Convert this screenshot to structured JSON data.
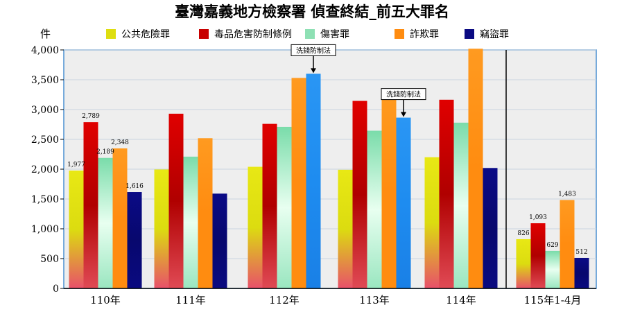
{
  "chart_data": {
    "type": "bar",
    "title": "臺灣嘉義地方檢察署 偵查終結_前五大罪名",
    "ylabel": "件",
    "ylim": [
      0,
      4000
    ],
    "yticks": [
      0,
      500,
      1000,
      1500,
      2000,
      2500,
      3000,
      3500,
      4000
    ],
    "ytick_labels": [
      "0",
      "500",
      "1,000",
      "1,500",
      "2,000",
      "2,500",
      "3,000",
      "3,500",
      "4,000"
    ],
    "categories": [
      "110年",
      "111年",
      "112年",
      "113年",
      "114年",
      "115年1-4月"
    ],
    "series": [
      {
        "name": "公共危險罪",
        "color": "#dede10",
        "values": [
          1977,
          1995,
          2040,
          1990,
          2200,
          826
        ]
      },
      {
        "name": "毒品危害防制條例",
        "color": "#c80000",
        "values": [
          2789,
          2930,
          2760,
          3145,
          3165,
          1093
        ]
      },
      {
        "name": "傷害罪",
        "color": "#8ee0b4",
        "values": [
          2189,
          2210,
          2710,
          2645,
          2780,
          629
        ]
      },
      {
        "name": "詐欺罪",
        "color": "#ff8c10",
        "values": [
          2348,
          2520,
          3530,
          3260,
          4020,
          1483
        ]
      },
      {
        "name": "竊盜罪",
        "color": "#0a0a82",
        "values": [
          1616,
          1590,
          3600,
          2865,
          2020,
          512
        ]
      }
    ],
    "data_labels": [
      {
        "category": 0,
        "series": 0,
        "text": "1,977"
      },
      {
        "category": 0,
        "series": 1,
        "text": "2,789"
      },
      {
        "category": 0,
        "series": 2,
        "text": "2,189"
      },
      {
        "category": 0,
        "series": 3,
        "text": "2,348"
      },
      {
        "category": 0,
        "series": 4,
        "text": "1,616"
      },
      {
        "category": 5,
        "series": 0,
        "text": "826"
      },
      {
        "category": 5,
        "series": 1,
        "text": "1,093"
      },
      {
        "category": 5,
        "series": 2,
        "text": "629"
      },
      {
        "category": 5,
        "series": 3,
        "text": "1,483"
      },
      {
        "category": 5,
        "series": 4,
        "text": "512"
      }
    ],
    "annotations": [
      {
        "category": 2,
        "series": 4,
        "text": "洗錢防制法",
        "highlight_color": "#1e8cf0"
      },
      {
        "category": 3,
        "series": 4,
        "text": "洗錢防制法",
        "highlight_color": "#1e8cf0"
      }
    ],
    "separator_before_category": 5,
    "grid": true,
    "legend_position": "top"
  }
}
